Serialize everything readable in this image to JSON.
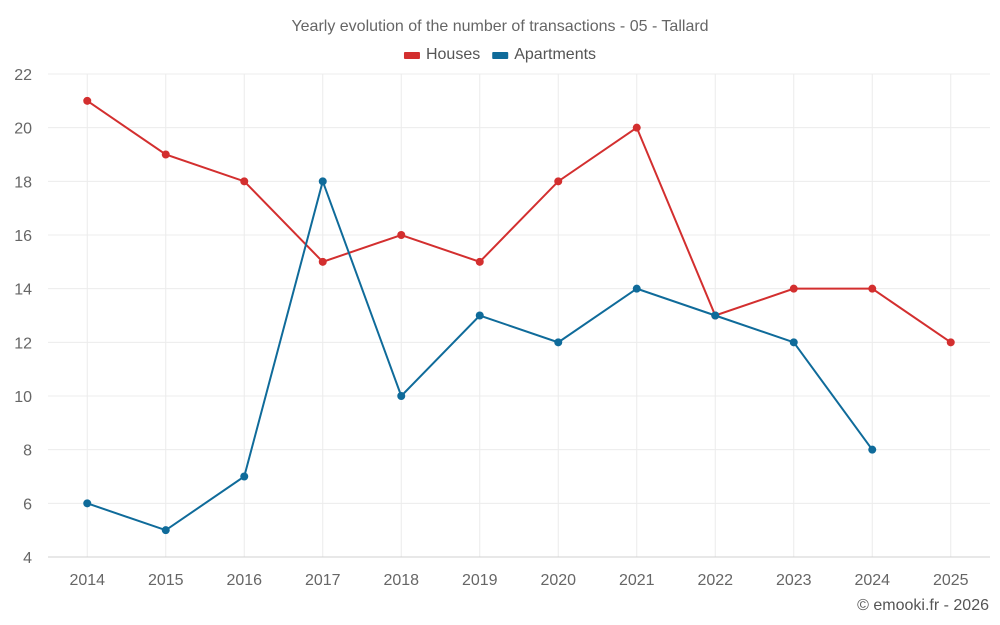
{
  "chart_data": {
    "type": "line",
    "title": "Yearly evolution of the number of transactions - 05 - Tallard",
    "categories": [
      "2014",
      "2015",
      "2016",
      "2017",
      "2018",
      "2019",
      "2020",
      "2021",
      "2022",
      "2023",
      "2024",
      "2025"
    ],
    "series": [
      {
        "name": "Houses",
        "color": "#d32f2f",
        "values": [
          21,
          19,
          18,
          15,
          16,
          15,
          18,
          20,
          13,
          14,
          14,
          12
        ]
      },
      {
        "name": "Apartments",
        "color": "#0f6b9a",
        "values": [
          6,
          5,
          7,
          18,
          10,
          13,
          12,
          14,
          13,
          12,
          8,
          null
        ]
      }
    ],
    "yticks": [
      4,
      6,
      8,
      10,
      12,
      14,
      16,
      18,
      20,
      22
    ],
    "ylim": [
      4,
      22
    ],
    "xlabel": "",
    "ylabel": "",
    "legend": "top-center",
    "grid": true
  },
  "credit": "© emooki.fr - 2026"
}
